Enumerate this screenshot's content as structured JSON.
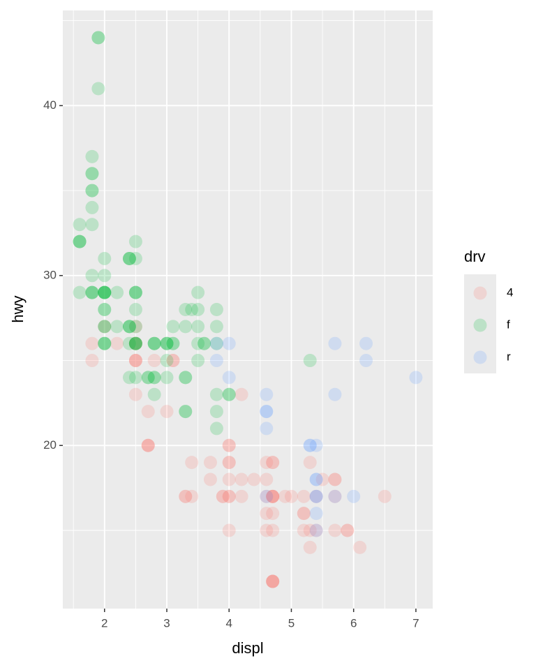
{
  "chart_data": {
    "type": "scatter",
    "x_label": "displ",
    "y_label": "hwy",
    "legend_title": "drv",
    "legend_position": "right",
    "grid": true,
    "alpha": 0.2,
    "xlim": [
      1.33,
      7.27
    ],
    "ylim": [
      10.4,
      45.6
    ],
    "xticks": [
      2,
      3,
      4,
      5,
      6,
      7
    ],
    "yticks": [
      20,
      30,
      40
    ],
    "xminor": [
      1.5,
      2.5,
      3.5,
      4.5,
      5.5,
      6.5
    ],
    "yminor": [
      15,
      25,
      35,
      45
    ],
    "series": [
      {
        "name": "4",
        "color": "#F8766D",
        "x": [
          1.8,
          1.8,
          2.0,
          2.2,
          2.5,
          2.5,
          2.5,
          2.5,
          2.5,
          2.5,
          2.5,
          2.8,
          3.1,
          3.1,
          2.7,
          3.0,
          2.7,
          2.7,
          2.7,
          3.4,
          3.7,
          3.7,
          3.3,
          3.3,
          3.4,
          3.9,
          3.9,
          4.0,
          4.0,
          4.2,
          4.0,
          4.0,
          4.0,
          4.0,
          4.0,
          4.2,
          4.4,
          4.0,
          4.2,
          4.6,
          4.7,
          4.7,
          4.6,
          4.7,
          4.7,
          4.7,
          4.7,
          4.6,
          4.7,
          4.6,
          4.6,
          4.7,
          4.7,
          4.7,
          4.7,
          4.7,
          5.0,
          4.9,
          5.2,
          5.2,
          5.2,
          5.2,
          5.3,
          5.3,
          5.3,
          5.4,
          5.4,
          5.5,
          5.7,
          5.7,
          5.7,
          5.7,
          5.9,
          5.9,
          6.1,
          6.5
        ],
        "values": [
          26,
          25,
          27,
          26,
          27,
          26,
          26,
          25,
          25,
          25,
          23,
          25,
          25,
          25,
          22,
          22,
          20,
          20,
          20,
          19,
          19,
          18,
          17,
          17,
          17,
          17,
          17,
          17,
          17,
          17,
          20,
          20,
          19,
          19,
          18,
          18,
          18,
          15,
          23,
          19,
          19,
          19,
          18,
          17,
          17,
          17,
          17,
          17,
          16,
          16,
          15,
          15,
          12,
          12,
          12,
          12,
          17,
          17,
          17,
          16,
          16,
          15,
          15,
          14,
          19,
          15,
          17,
          18,
          18,
          18,
          17,
          15,
          15,
          15,
          14,
          17
        ]
      },
      {
        "name": "f",
        "color": "#00BA38",
        "x": [
          1.9,
          1.9,
          1.9,
          1.8,
          1.8,
          1.8,
          1.8,
          1.8,
          1.8,
          1.8,
          1.6,
          1.6,
          1.6,
          1.6,
          1.8,
          2.0,
          2.0,
          2.5,
          2.5,
          2.4,
          2.4,
          2.4,
          1.6,
          1.8,
          1.8,
          1.8,
          2.0,
          2.0,
          2.0,
          2.0,
          2.0,
          2.2,
          2.5,
          2.5,
          2.5,
          2.0,
          2.0,
          2.5,
          2.0,
          2.0,
          2.2,
          2.4,
          2.4,
          2.4,
          2.5,
          2.0,
          2.0,
          2.0,
          2.5,
          2.5,
          2.5,
          2.5,
          2.4,
          2.4,
          2.5,
          2.7,
          2.7,
          2.8,
          2.8,
          2.8,
          2.8,
          2.8,
          3.0,
          3.0,
          3.0,
          3.1,
          3.1,
          3.1,
          3.3,
          3.3,
          3.4,
          3.5,
          3.5,
          3.5,
          3.5,
          3.5,
          3.6,
          3.6,
          3.8,
          3.8,
          3.8,
          3.8,
          3.8,
          3.8,
          3.3,
          3.3,
          3.3,
          3.3,
          3.0,
          3.0,
          2.8,
          4.0,
          4.0,
          5.3
        ],
        "values": [
          44,
          44,
          41,
          37,
          36,
          36,
          35,
          35,
          34,
          33,
          33,
          32,
          32,
          32,
          30,
          31,
          30,
          32,
          31,
          31,
          31,
          31,
          29,
          29,
          29,
          29,
          29,
          29,
          29,
          29,
          29,
          29,
          29,
          29,
          29,
          28,
          28,
          28,
          27,
          27,
          27,
          27,
          27,
          27,
          27,
          26,
          26,
          26,
          26,
          26,
          26,
          26,
          26,
          24,
          24,
          24,
          24,
          24,
          24,
          26,
          26,
          26,
          26,
          26,
          26,
          26,
          26,
          27,
          27,
          28,
          28,
          29,
          28,
          27,
          26,
          25,
          26,
          26,
          28,
          27,
          26,
          23,
          22,
          21,
          24,
          24,
          22,
          22,
          25,
          24,
          23,
          23,
          23,
          25
        ]
      },
      {
        "name": "r",
        "color": "#619CFF",
        "x": [
          3.8,
          4.0,
          3.8,
          4.0,
          4.6,
          4.6,
          4.6,
          4.6,
          4.6,
          5.3,
          5.3,
          5.4,
          5.4,
          5.4,
          5.4,
          5.4,
          5.4,
          5.4,
          5.7,
          6.0,
          5.7,
          5.7,
          6.2,
          6.2,
          7.0
        ],
        "values": [
          26,
          26,
          25,
          24,
          23,
          22,
          22,
          21,
          17,
          20,
          20,
          20,
          18,
          18,
          17,
          17,
          16,
          15,
          17,
          17,
          26,
          23,
          26,
          25,
          24
        ]
      }
    ]
  }
}
